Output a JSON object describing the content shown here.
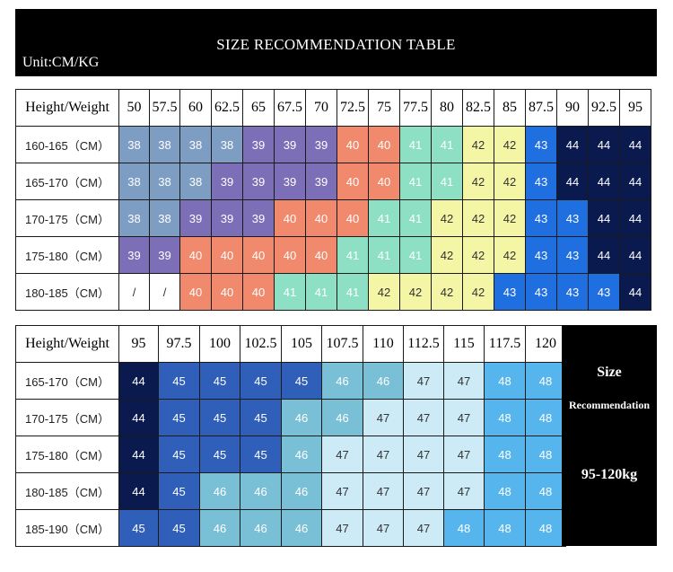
{
  "header": {
    "title": "SIZE RECOMMENDATION TABLE",
    "unit": "Unit:CM/KG"
  },
  "size_colors": {
    "38": "#7e9dc3",
    "39": "#7c6fb8",
    "40": "#f18a6c",
    "41": "#8de0c4",
    "42": "#f4f6a6",
    "43": "#1f6fe0",
    "44": "#0a1a4f",
    "45": "#2f5fb8",
    "46": "#79bfd6",
    "47": "#cdeaf7",
    "48": "#57b5ee",
    "/": "#ffffff"
  },
  "table1": {
    "corner": "Height/Weight",
    "weights": [
      "50",
      "57.5",
      "60",
      "62.5",
      "65",
      "67.5",
      "70",
      "72.5",
      "75",
      "77.5",
      "80",
      "82.5",
      "85",
      "87.5",
      "90",
      "92.5",
      "95"
    ],
    "rows": [
      {
        "label": "160-165（CM）",
        "cells": [
          "38",
          "38",
          "38",
          "38",
          "39",
          "39",
          "39",
          "40",
          "40",
          "41",
          "41",
          "42",
          "42",
          "43",
          "44",
          "44",
          "44"
        ]
      },
      {
        "label": "165-170（CM）",
        "cells": [
          "38",
          "38",
          "38",
          "39",
          "39",
          "39",
          "39",
          "40",
          "40",
          "41",
          "41",
          "42",
          "42",
          "43",
          "44",
          "44",
          "44"
        ]
      },
      {
        "label": "170-175（CM）",
        "cells": [
          "38",
          "38",
          "39",
          "39",
          "39",
          "40",
          "40",
          "40",
          "41",
          "41",
          "42",
          "42",
          "42",
          "43",
          "43",
          "44",
          "44"
        ]
      },
      {
        "label": "175-180（CM）",
        "cells": [
          "39",
          "39",
          "40",
          "40",
          "40",
          "40",
          "40",
          "41",
          "41",
          "41",
          "42",
          "42",
          "42",
          "43",
          "43",
          "44",
          "44"
        ]
      },
      {
        "label": "180-185（CM）",
        "cells": [
          "/",
          "/",
          "40",
          "40",
          "40",
          "41",
          "41",
          "41",
          "42",
          "42",
          "42",
          "42",
          "43",
          "43",
          "43",
          "43",
          "44"
        ]
      }
    ]
  },
  "table2": {
    "corner": "Height/Weight",
    "weights": [
      "95",
      "97.5",
      "100",
      "102.5",
      "105",
      "107.5",
      "110",
      "112.5",
      "115",
      "117.5",
      "120"
    ],
    "rows": [
      {
        "label": "165-170（CM）",
        "cells": [
          "44",
          "45",
          "45",
          "45",
          "45",
          "46",
          "46",
          "47",
          "47",
          "48",
          "48"
        ]
      },
      {
        "label": "170-175（CM）",
        "cells": [
          "44",
          "45",
          "45",
          "45",
          "46",
          "46",
          "47",
          "47",
          "47",
          "48",
          "48"
        ]
      },
      {
        "label": "175-180（CM）",
        "cells": [
          "44",
          "45",
          "45",
          "45",
          "46",
          "47",
          "47",
          "47",
          "47",
          "48",
          "48"
        ]
      },
      {
        "label": "180-185（CM）",
        "cells": [
          "44",
          "45",
          "46",
          "46",
          "46",
          "47",
          "47",
          "47",
          "47",
          "48",
          "48"
        ]
      },
      {
        "label": "185-190（CM）",
        "cells": [
          "45",
          "45",
          "46",
          "46",
          "46",
          "47",
          "47",
          "47",
          "48",
          "48",
          "48"
        ]
      }
    ]
  },
  "side_panel": {
    "line1": "Size",
    "line2": "Recommendation",
    "line3": "95-120kg"
  }
}
